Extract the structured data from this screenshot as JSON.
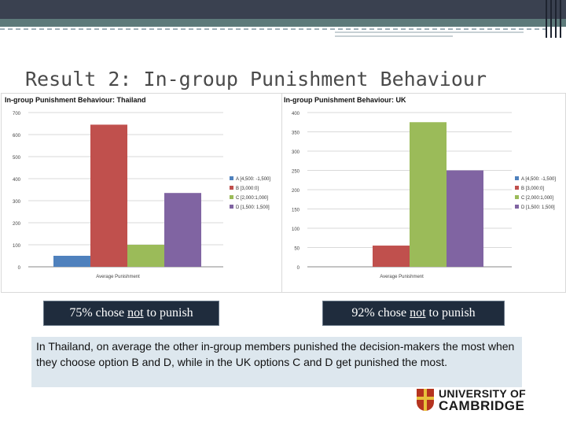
{
  "slide": {
    "title": "Result 2: In-group Punishment Behaviour"
  },
  "boxes": {
    "thailand": {
      "pre": "75% chose ",
      "emph": "not",
      "post": " to punish"
    },
    "uk": {
      "pre": "92% chose ",
      "emph": "not",
      "post": " to punish"
    }
  },
  "note": {
    "text": "In Thailand, on average the other in-group members punished the decision-makers the most when they choose option B and D, while in the UK options C and D get punished the most."
  },
  "logo": {
    "line1": "UNIVERSITY OF",
    "line2": "CAMBRIDGE"
  },
  "colors": {
    "A": "#4f81bd",
    "B": "#c0504d",
    "C": "#9bbb59",
    "D": "#8064a2",
    "note_bg": "#dde7ee",
    "box_bg": "#1f2c3d"
  },
  "chart_data": [
    {
      "type": "bar",
      "title": "In-group Punishment Behaviour: Thailand",
      "categories": [
        "Average Punishment"
      ],
      "xlabel": "Average Punishment",
      "ylim": [
        0,
        700
      ],
      "yticks": [
        0,
        100,
        200,
        300,
        400,
        500,
        600,
        700
      ],
      "series": [
        {
          "name": "A [4,500: -1,500]",
          "values": [
            50
          ]
        },
        {
          "name": "B [3,000:0]",
          "values": [
            645
          ]
        },
        {
          "name": "C [2,000:1,000]",
          "values": [
            100
          ]
        },
        {
          "name": "D [1,500: 1,500]",
          "values": [
            335
          ]
        }
      ],
      "legend": "right"
    },
    {
      "type": "bar",
      "title": "In-group Punishment Behaviour: UK",
      "categories": [
        "Average Punishment"
      ],
      "xlabel": "Average Punishment",
      "ylim": [
        0,
        400
      ],
      "yticks": [
        0,
        50,
        100,
        150,
        200,
        250,
        300,
        350,
        400
      ],
      "series": [
        {
          "name": "A [4,500: -1,500]",
          "values": [
            0
          ]
        },
        {
          "name": "B [3,000:0]",
          "values": [
            55
          ]
        },
        {
          "name": "C [2,000:1,000]",
          "values": [
            375
          ]
        },
        {
          "name": "D [1,500: 1,500]",
          "values": [
            250
          ]
        }
      ],
      "legend": "right"
    }
  ]
}
